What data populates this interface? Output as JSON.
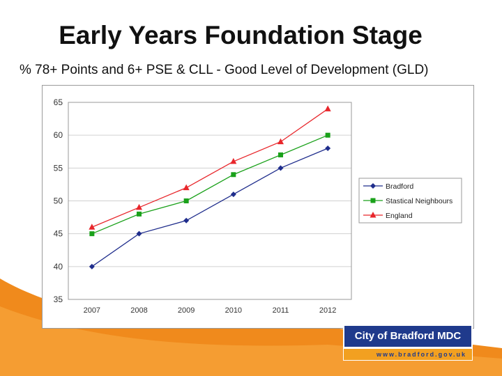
{
  "slide": {
    "title": "Early Years Foundation Stage",
    "subtitle": "% 78+ Points and 6+ PSE & CLL - Good Level of Development (GLD)"
  },
  "logo": {
    "name": "City of Bradford MDC",
    "url": "www.bradford.gov.uk"
  },
  "colors": {
    "background_orange": "#f08a1c",
    "axis_gray": "#9a9a9a",
    "grid_gray": "#d0d0d0"
  },
  "chart_data": {
    "type": "line",
    "title": "",
    "xlabel": "",
    "ylabel": "",
    "categories": [
      "2007",
      "2008",
      "2009",
      "2010",
      "2011",
      "2012"
    ],
    "ylim": [
      35,
      65
    ],
    "yticks": [
      35,
      40,
      45,
      50,
      55,
      60,
      65
    ],
    "grid": true,
    "legend_position": "right",
    "series": [
      {
        "name": "Bradford",
        "values": [
          40,
          45,
          47,
          51,
          55,
          58
        ],
        "color": "#1f2d8c",
        "marker": "diamond"
      },
      {
        "name": "Stastical Neighbours",
        "values": [
          45,
          48,
          50,
          54,
          57,
          60
        ],
        "color": "#1aa11a",
        "marker": "square"
      },
      {
        "name": "England",
        "values": [
          46,
          49,
          52,
          56,
          59,
          64
        ],
        "color": "#e8262b",
        "marker": "triangle"
      }
    ]
  }
}
